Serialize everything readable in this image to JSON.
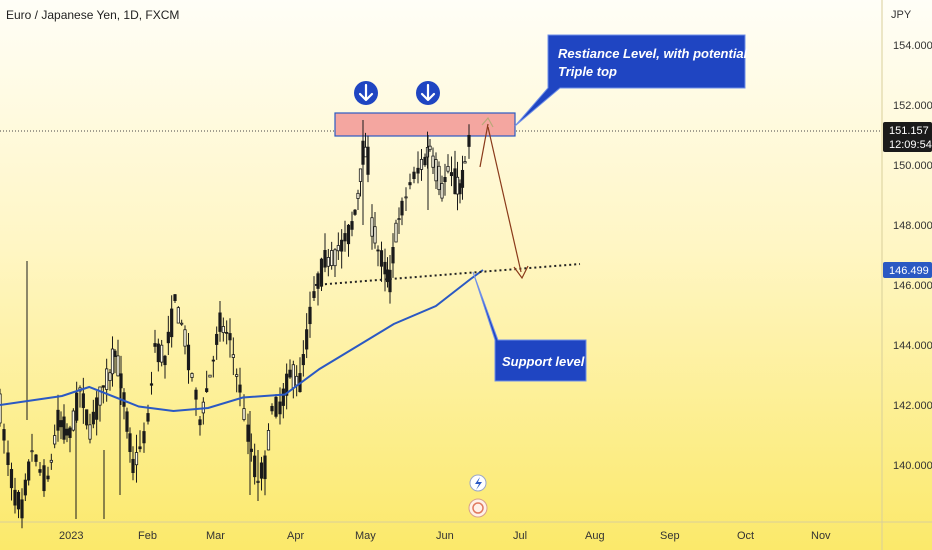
{
  "header": {
    "title": "Euro / Japanese Yen, 1D, FXCM"
  },
  "axis": {
    "currency": "JPY"
  },
  "badges": {
    "last_price": "151.157",
    "countdown": "12:09:54",
    "support_price": "146.499"
  },
  "chart_data": {
    "type": "candlestick",
    "title": "Euro / Japanese Yen, 1D, FXCM",
    "y_unit": "JPY",
    "ylim": [
      138.2,
      155.5
    ],
    "y_ticks": [
      "154.000",
      "152.000",
      "150.000",
      "148.000",
      "146.000",
      "144.000",
      "142.000",
      "140.000"
    ],
    "x_labels": [
      "2023",
      "Feb",
      "Mar",
      "Apr",
      "May",
      "Jun",
      "Jul",
      "Aug",
      "Sep",
      "Oct",
      "Nov"
    ],
    "last_price": 151.157,
    "support_level": 146.499,
    "moving_average": [
      {
        "date": "2023-01-01",
        "value": 142.3
      },
      {
        "date": "2023-01-12",
        "value": 142.6
      },
      {
        "date": "2023-02-01",
        "value": 141.95
      },
      {
        "date": "2023-02-15",
        "value": 141.8
      },
      {
        "date": "2023-03-01",
        "value": 141.9
      },
      {
        "date": "2023-03-15",
        "value": 142.25
      },
      {
        "date": "2023-04-01",
        "value": 142.35
      },
      {
        "date": "2023-04-15",
        "value": 143.2
      },
      {
        "date": "2023-05-01",
        "value": 144.0
      },
      {
        "date": "2023-05-15",
        "value": 144.7
      },
      {
        "date": "2023-06-01",
        "value": 145.3
      },
      {
        "date": "2023-06-15",
        "value": 146.2
      },
      {
        "date": "2023-06-20",
        "value": 146.5
      }
    ],
    "resistance_zone": {
      "low": 151.0,
      "high": 151.7,
      "from": "2023-04-28",
      "to": "2023-06-25"
    },
    "annotations": [
      {
        "id": "resistance",
        "text": "Restiance Level, with potential\nTriple top"
      },
      {
        "id": "support",
        "text": "Support level"
      }
    ]
  },
  "colors": {
    "background_top": "#fffdf2",
    "background_bottom": "#fbe96a",
    "candle_up": "#1a1a1a",
    "candle_down": "#1a1a1a",
    "moving_average": "#2b59c3",
    "resistance_zone": "#f4a6a0",
    "callout": "#1f45c2",
    "projection_arrow": "#8a3a1a"
  }
}
